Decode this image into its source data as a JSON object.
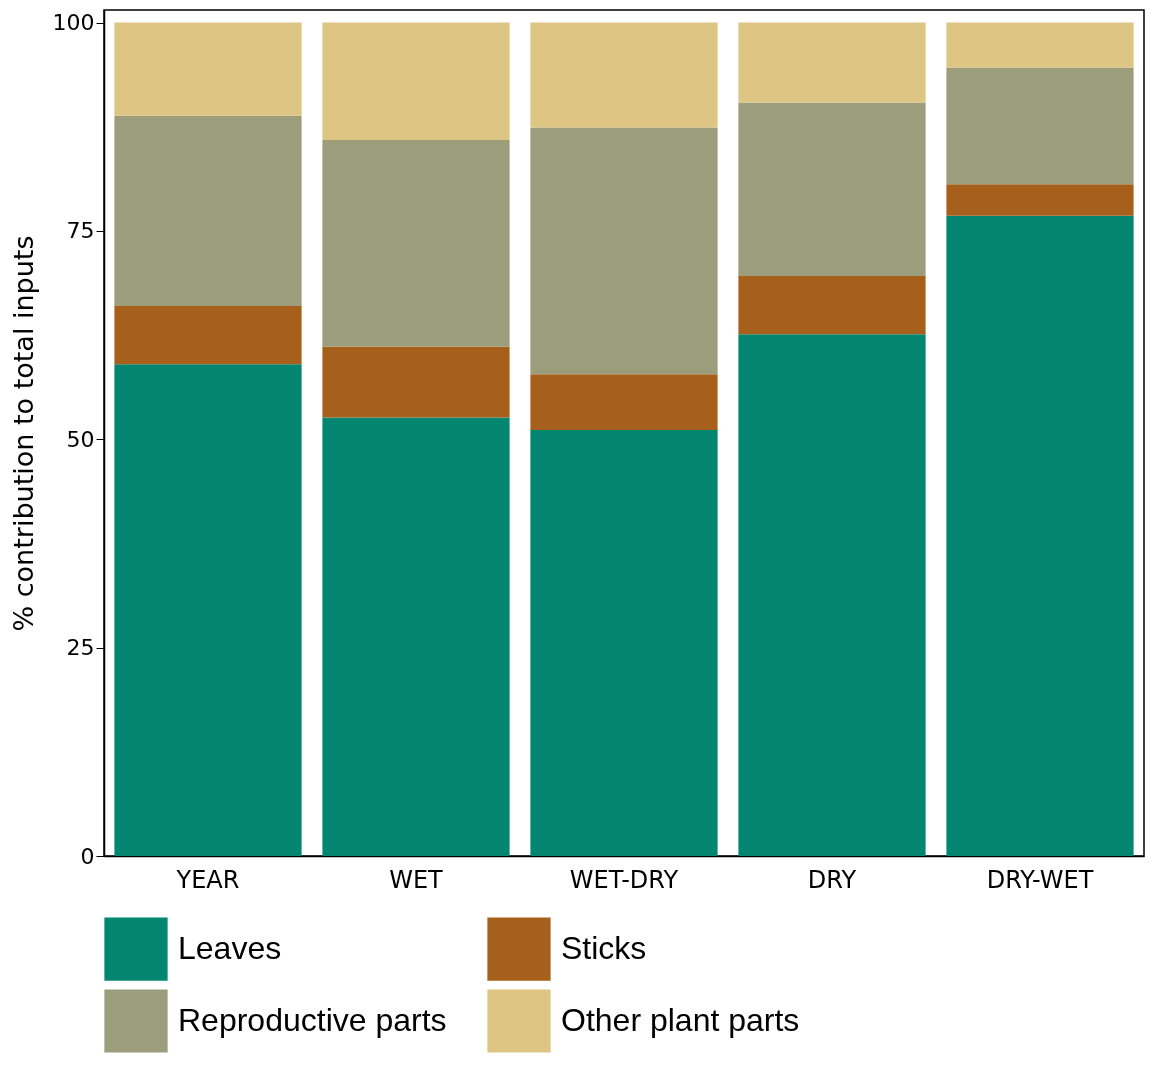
{
  "chart_data": {
    "type": "bar",
    "stacked": true,
    "ylabel": "% contribution to total inputs",
    "categories": [
      "YEAR",
      "WET",
      "WET-DRY",
      "DRY",
      "DRY-WET"
    ],
    "series": [
      {
        "name": "Leaves",
        "color": "#038670",
        "values": [
          59.0,
          52.6,
          51.1,
          62.6,
          76.8
        ]
      },
      {
        "name": "Sticks",
        "color": "#a6601c",
        "values": [
          7.0,
          8.5,
          6.7,
          7.0,
          3.8
        ]
      },
      {
        "name": "Reproductive parts",
        "color": "#9c9d7b",
        "values": [
          22.8,
          24.8,
          29.6,
          20.8,
          14.0
        ]
      },
      {
        "name": "Other plant parts",
        "color": "#dfc584",
        "values": [
          11.2,
          14.1,
          12.6,
          9.6,
          5.4
        ]
      }
    ],
    "ylim": [
      0,
      101.5
    ],
    "yticks": [
      0,
      25,
      50,
      75,
      100
    ],
    "grid": false,
    "legend": "bottom"
  }
}
